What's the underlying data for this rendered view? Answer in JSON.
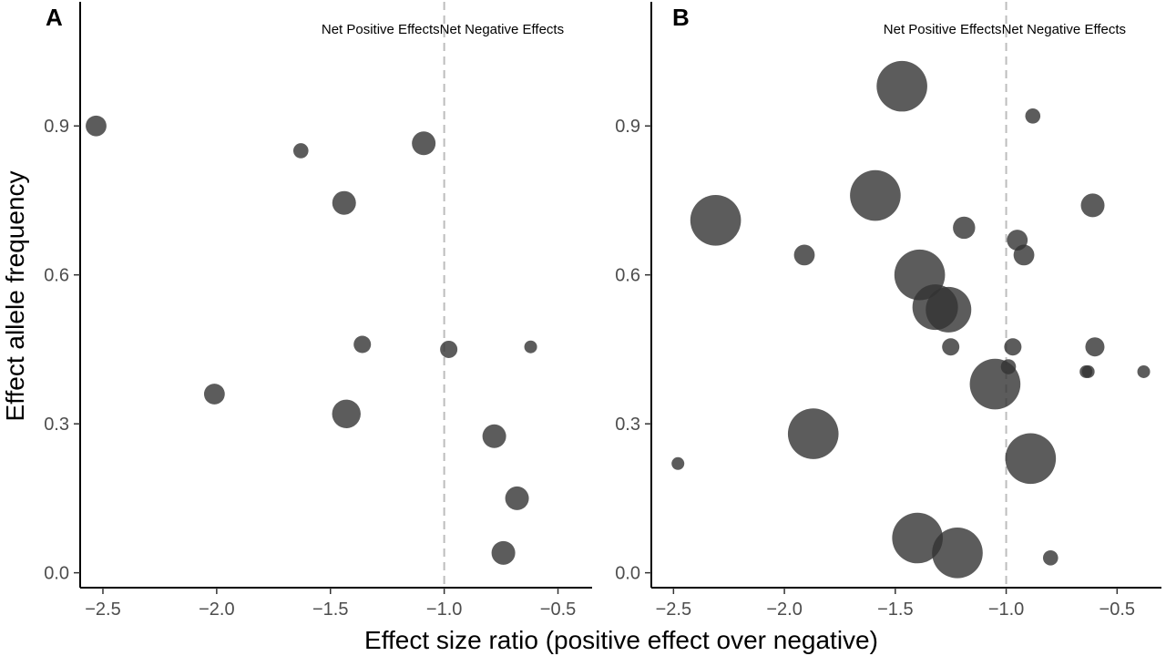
{
  "figure": {
    "xlabel": "Effect size ratio (positive effect over negative)",
    "ylabel": "Effect allele frequency"
  },
  "chart_data": [
    {
      "type": "scatter",
      "panel_label": "A",
      "xlim": [
        -2.6,
        -0.35
      ],
      "ylim": [
        -0.03,
        1.15
      ],
      "x_ticks": [
        -2.5,
        -2.0,
        -1.5,
        -1.0,
        -0.5
      ],
      "x_tick_labels": [
        "−2.5",
        "−2.0",
        "−1.5",
        "−1.0",
        "−0.5"
      ],
      "y_ticks": [
        0.0,
        0.3,
        0.6,
        0.9
      ],
      "y_tick_labels": [
        "0.0",
        "0.3",
        "0.6",
        "0.9"
      ],
      "reference_line_x": -1.0,
      "annotations": {
        "left": "Net Positive Effects",
        "right": "Net Negative Effects"
      },
      "grid": false,
      "point_color": "#333333",
      "point_opacity": 0.8,
      "points": [
        {
          "x": -2.53,
          "y": 0.9,
          "size": 3
        },
        {
          "x": -1.63,
          "y": 0.85,
          "size": 1.5
        },
        {
          "x": -1.09,
          "y": 0.865,
          "size": 4
        },
        {
          "x": -1.44,
          "y": 0.745,
          "size": 4
        },
        {
          "x": -1.36,
          "y": 0.46,
          "size": 2
        },
        {
          "x": -0.98,
          "y": 0.45,
          "size": 2
        },
        {
          "x": -0.62,
          "y": 0.455,
          "size": 1
        },
        {
          "x": -2.01,
          "y": 0.36,
          "size": 3
        },
        {
          "x": -1.43,
          "y": 0.32,
          "size": 6
        },
        {
          "x": -0.78,
          "y": 0.275,
          "size": 4
        },
        {
          "x": -0.68,
          "y": 0.15,
          "size": 4
        },
        {
          "x": -0.74,
          "y": 0.04,
          "size": 4
        }
      ]
    },
    {
      "type": "scatter",
      "panel_label": "B",
      "xlim": [
        -2.6,
        -0.3
      ],
      "ylim": [
        -0.03,
        1.15
      ],
      "x_ticks": [
        -2.5,
        -2.0,
        -1.5,
        -1.0,
        -0.5
      ],
      "x_tick_labels": [
        "−2.5",
        "−2.0",
        "−1.5",
        "−1.0",
        "−0.5"
      ],
      "y_ticks": [
        0.0,
        0.3,
        0.6,
        0.9
      ],
      "y_tick_labels": [
        "0.0",
        "0.3",
        "0.6",
        "0.9"
      ],
      "reference_line_x": -1.0,
      "annotations": {
        "left": "Net Positive Effects",
        "right": "Net Negative Effects"
      },
      "grid": false,
      "point_color": "#333333",
      "point_opacity": 0.8,
      "points": [
        {
          "x": -1.47,
          "y": 0.98,
          "size": 20
        },
        {
          "x": -0.88,
          "y": 0.92,
          "size": 1.5
        },
        {
          "x": -1.59,
          "y": 0.76,
          "size": 20
        },
        {
          "x": -2.31,
          "y": 0.71,
          "size": 20
        },
        {
          "x": -1.19,
          "y": 0.695,
          "size": 3.5
        },
        {
          "x": -0.61,
          "y": 0.74,
          "size": 4
        },
        {
          "x": -0.95,
          "y": 0.67,
          "size": 3
        },
        {
          "x": -0.92,
          "y": 0.64,
          "size": 3
        },
        {
          "x": -1.91,
          "y": 0.64,
          "size": 3
        },
        {
          "x": -1.39,
          "y": 0.6,
          "size": 20
        },
        {
          "x": -1.32,
          "y": 0.535,
          "size": 16
        },
        {
          "x": -1.26,
          "y": 0.53,
          "size": 16
        },
        {
          "x": -1.25,
          "y": 0.455,
          "size": 2
        },
        {
          "x": -0.97,
          "y": 0.455,
          "size": 2
        },
        {
          "x": -0.6,
          "y": 0.455,
          "size": 2.5
        },
        {
          "x": -0.99,
          "y": 0.415,
          "size": 1.5
        },
        {
          "x": -0.64,
          "y": 0.405,
          "size": 1
        },
        {
          "x": -0.63,
          "y": 0.405,
          "size": 1
        },
        {
          "x": -0.38,
          "y": 0.405,
          "size": 1
        },
        {
          "x": -1.05,
          "y": 0.38,
          "size": 20
        },
        {
          "x": -1.87,
          "y": 0.28,
          "size": 20
        },
        {
          "x": -0.89,
          "y": 0.23,
          "size": 20
        },
        {
          "x": -2.48,
          "y": 0.22,
          "size": 1
        },
        {
          "x": -1.4,
          "y": 0.07,
          "size": 20
        },
        {
          "x": -1.22,
          "y": 0.04,
          "size": 20
        },
        {
          "x": -0.8,
          "y": 0.03,
          "size": 1.5
        }
      ]
    }
  ]
}
